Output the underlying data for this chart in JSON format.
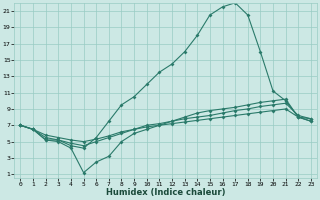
{
  "xlabel": "Humidex (Indice chaleur)",
  "ylabel": "",
  "bg_color": "#cce8e4",
  "grid_color": "#99ccc4",
  "line_color": "#2a7a6a",
  "xlim": [
    -0.5,
    23.5
  ],
  "ylim": [
    0.5,
    22.0
  ],
  "xticks": [
    0,
    1,
    2,
    3,
    4,
    5,
    6,
    7,
    8,
    9,
    10,
    11,
    12,
    13,
    14,
    15,
    16,
    17,
    18,
    19,
    20,
    21,
    22,
    23
  ],
  "yticks": [
    1,
    3,
    5,
    7,
    9,
    11,
    13,
    15,
    17,
    19,
    21
  ],
  "line1_x": [
    0,
    1,
    2,
    3,
    4,
    5,
    6,
    7,
    8,
    9,
    10,
    11,
    12,
    13,
    14,
    15,
    16,
    17,
    18,
    19,
    20,
    21,
    22,
    23
  ],
  "line1_y": [
    7.0,
    6.5,
    5.2,
    5.2,
    4.5,
    4.2,
    5.5,
    7.5,
    9.5,
    10.5,
    12.0,
    13.5,
    14.5,
    16.0,
    18.0,
    20.5,
    21.5,
    22.0,
    20.5,
    16.0,
    11.2,
    10.0,
    8.0,
    7.5
  ],
  "line2_x": [
    0,
    1,
    2,
    3,
    4,
    5,
    6,
    7,
    8,
    9,
    10,
    11,
    12,
    13,
    14,
    15,
    16,
    17,
    18,
    19,
    20,
    21,
    22,
    23
  ],
  "line2_y": [
    7.0,
    6.5,
    5.2,
    5.0,
    4.2,
    1.2,
    2.5,
    3.2,
    5.0,
    6.0,
    6.5,
    7.0,
    7.5,
    8.0,
    8.5,
    8.8,
    9.0,
    9.2,
    9.5,
    9.8,
    10.0,
    10.2,
    8.0,
    7.5
  ],
  "line3_x": [
    0,
    1,
    2,
    3,
    4,
    5,
    6,
    7,
    8,
    9,
    10,
    11,
    12,
    13,
    14,
    15,
    16,
    17,
    18,
    19,
    20,
    21,
    22,
    23
  ],
  "line3_y": [
    7.0,
    6.5,
    5.5,
    5.2,
    4.8,
    4.5,
    5.0,
    5.5,
    6.0,
    6.5,
    7.0,
    7.2,
    7.5,
    7.8,
    8.0,
    8.2,
    8.5,
    8.8,
    9.0,
    9.3,
    9.5,
    9.7,
    8.2,
    7.8
  ],
  "line4_x": [
    0,
    1,
    2,
    3,
    4,
    5,
    6,
    7,
    8,
    9,
    10,
    11,
    12,
    13,
    14,
    15,
    16,
    17,
    18,
    19,
    20,
    21,
    22,
    23
  ],
  "line4_y": [
    7.0,
    6.5,
    5.8,
    5.5,
    5.2,
    5.0,
    5.3,
    5.7,
    6.2,
    6.5,
    6.8,
    7.0,
    7.2,
    7.4,
    7.6,
    7.8,
    8.0,
    8.2,
    8.4,
    8.6,
    8.8,
    9.0,
    8.0,
    7.8
  ]
}
